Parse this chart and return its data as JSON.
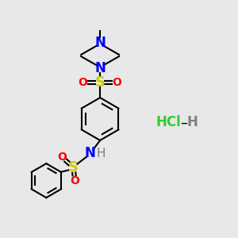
{
  "background_color": "#e8e8e8",
  "bond_color": "#000000",
  "N_color": "#0000ff",
  "S_color": "#cccc00",
  "O_color": "#ff0000",
  "H_color": "#808080",
  "Cl_color": "#33cc33",
  "label_fontsize": 11,
  "small_fontsize": 9,
  "hcl_fontsize": 11,
  "figsize": [
    3.0,
    3.0
  ],
  "dpi": 100,
  "xlim": [
    0,
    10
  ],
  "ylim": [
    0,
    10
  ]
}
